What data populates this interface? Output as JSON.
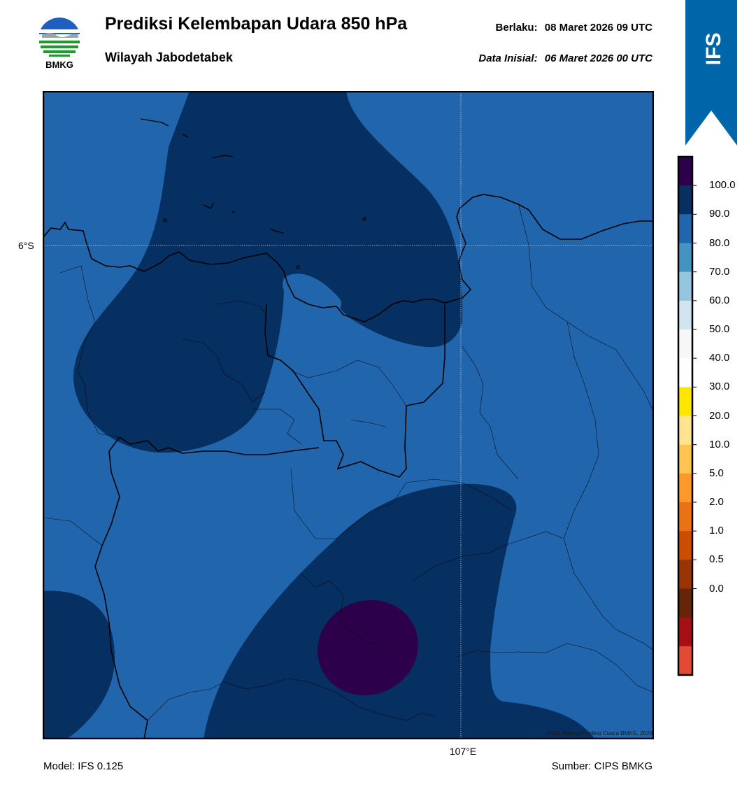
{
  "header": {
    "title": "Prediksi Kelembapan Udara 850 hPa",
    "subtitle": "Wilayah Jabodetabek",
    "valid_label": "Berlaku:",
    "valid_value": "08 Maret 2026 09 UTC",
    "init_label": "Data Inisial:",
    "init_value": "06 Maret 2026 00 UTC"
  },
  "logo": {
    "text": "BMKG",
    "icon": "bmkg-logo"
  },
  "ribbon": {
    "text": "IFS",
    "color": "#0066aa"
  },
  "map": {
    "lat_label": "6°S",
    "lon_label": "107°E",
    "copyright": "©Sub Bidang Prediksi Cuaca BMKG, 2026",
    "colors": {
      "band_80_90": "#2166ac",
      "band_90_100": "#053061",
      "band_100": "#2d004b"
    }
  },
  "footer": {
    "model": "Model: IFS 0.125",
    "source": "Sumber: CIPS BMKG"
  },
  "colorbar": {
    "labels": [
      "100.0",
      "90.0",
      "80.0",
      "70.0",
      "60.0",
      "50.0",
      "40.0",
      "30.0",
      "20.0",
      "10.0",
      "5.0",
      "2.0",
      "1.0",
      "0.5",
      "0.0"
    ],
    "colors": [
      "#2d004b",
      "#053061",
      "#2166ac",
      "#4393c3",
      "#92c5de",
      "#d1e5f0",
      "#f7f7f7",
      "#ffffff",
      "#ffe600",
      "#fee391",
      "#fec44f",
      "#fe9929",
      "#ec7014",
      "#cc4c02",
      "#993404",
      "#662506",
      "#a50f15",
      "#e34a33"
    ]
  }
}
